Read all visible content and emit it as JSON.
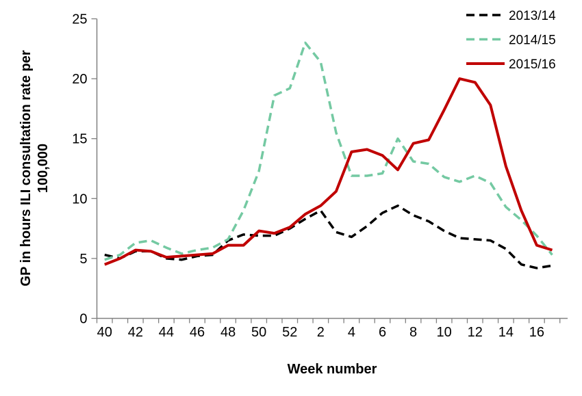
{
  "chart_data": {
    "type": "line",
    "title": "",
    "xlabel": "Week number",
    "ylabel": "GP in hours ILI consultation rate per 100,000",
    "ylabel_lines": [
      "GP in hours ILI consultation rate per",
      "100,000"
    ],
    "categories": [
      "40",
      "41",
      "42",
      "43",
      "44",
      "45",
      "46",
      "47",
      "48",
      "49",
      "50",
      "51",
      "52",
      "1",
      "2",
      "3",
      "4",
      "5",
      "6",
      "7",
      "8",
      "9",
      "10",
      "11",
      "12",
      "13",
      "14",
      "15",
      "16",
      "17"
    ],
    "x_tick_labels": [
      "40",
      "42",
      "44",
      "46",
      "48",
      "50",
      "52",
      "2",
      "4",
      "6",
      "8",
      "10",
      "12",
      "14",
      "16"
    ],
    "y_ticks": [
      0,
      5,
      10,
      15,
      20,
      25
    ],
    "ylim": [
      0,
      25
    ],
    "grid": false,
    "legend_position": "top-right",
    "series": [
      {
        "name": "2013/14",
        "style": "dashed",
        "color": "#000000",
        "values": [
          5.3,
          5.0,
          5.6,
          5.6,
          5.0,
          4.9,
          5.2,
          5.3,
          6.5,
          7.0,
          6.9,
          6.9,
          7.5,
          8.3,
          9.0,
          7.2,
          6.8,
          7.7,
          8.8,
          9.4,
          8.6,
          8.1,
          7.3,
          6.7,
          6.6,
          6.5,
          5.8,
          4.5,
          4.2,
          4.4
        ]
      },
      {
        "name": "2014/15",
        "style": "dashed",
        "color": "#74C9A2",
        "values": [
          4.9,
          5.3,
          6.3,
          6.5,
          5.9,
          5.4,
          5.7,
          5.9,
          6.6,
          9.0,
          12.3,
          18.6,
          19.2,
          23.0,
          21.4,
          15.5,
          11.9,
          11.9,
          12.1,
          15.0,
          13.1,
          12.9,
          11.8,
          11.4,
          11.9,
          11.3,
          9.3,
          8.2,
          6.9,
          5.3
        ]
      },
      {
        "name": "2015/16",
        "style": "solid",
        "color": "#C00000",
        "values": [
          4.5,
          5.0,
          5.7,
          5.6,
          5.1,
          5.2,
          5.3,
          5.4,
          6.1,
          6.1,
          7.3,
          7.1,
          7.6,
          8.7,
          9.4,
          10.6,
          13.9,
          14.1,
          13.6,
          12.4,
          14.6,
          14.9,
          17.4,
          20.0,
          19.7,
          17.8,
          12.7,
          9.0,
          6.1,
          5.7
        ]
      }
    ],
    "axis_color": "#808080"
  }
}
